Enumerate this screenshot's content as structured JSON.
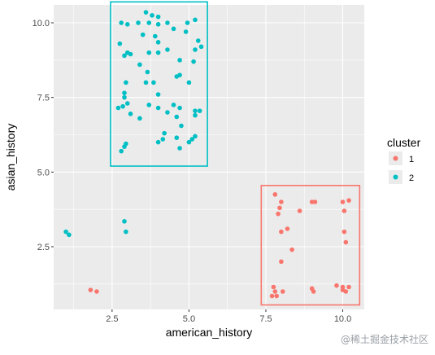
{
  "chart_data": {
    "type": "scatter",
    "xlabel": "american_history",
    "ylabel": "asian_history",
    "xlim": [
      0.6,
      10.7
    ],
    "ylim": [
      0.4,
      10.6
    ],
    "x_ticks": [
      2.5,
      5.0,
      7.5,
      10.0
    ],
    "x_tick_labels": [
      "2.5",
      "5.0",
      "7.5",
      "10.0"
    ],
    "y_ticks": [
      2.5,
      5.0,
      7.5,
      10.0
    ],
    "y_tick_labels": [
      "2.5",
      "5.0",
      "7.5",
      "10.0"
    ],
    "grid": true,
    "legend": {
      "title": "cluster",
      "position": "right",
      "entries": [
        {
          "label": "1",
          "color": "#F8766D"
        },
        {
          "label": "2",
          "color": "#00BFC4"
        }
      ]
    },
    "series": [
      {
        "name": "1",
        "color": "#F8766D",
        "points": [
          [
            7.8,
            4.25
          ],
          [
            7.95,
            3.8
          ],
          [
            8.0,
            4.0
          ],
          [
            8.2,
            3.1
          ],
          [
            8.0,
            3.0
          ],
          [
            7.9,
            3.6
          ],
          [
            8.6,
            3.7
          ],
          [
            9.0,
            4.0
          ],
          [
            9.1,
            4.0
          ],
          [
            10.0,
            4.0
          ],
          [
            10.2,
            4.05
          ],
          [
            10.05,
            3.7
          ],
          [
            10.05,
            3.0
          ],
          [
            10.1,
            2.65
          ],
          [
            8.35,
            2.4
          ],
          [
            8.0,
            2.0
          ],
          [
            7.75,
            1.15
          ],
          [
            7.8,
            1.0
          ],
          [
            7.7,
            0.85
          ],
          [
            7.85,
            0.85
          ],
          [
            8.05,
            1.0
          ],
          [
            9.0,
            1.1
          ],
          [
            9.05,
            1.0
          ],
          [
            9.8,
            1.2
          ],
          [
            10.0,
            1.05
          ],
          [
            10.0,
            1.15
          ],
          [
            10.2,
            1.15
          ],
          [
            10.1,
            1.0
          ],
          [
            1.8,
            1.05
          ],
          [
            2.0,
            1.0
          ]
        ]
      },
      {
        "name": "2",
        "color": "#00BFC4",
        "points": [
          [
            3.6,
            10.35
          ],
          [
            3.8,
            10.25
          ],
          [
            4.0,
            10.2
          ],
          [
            3.35,
            10.0
          ],
          [
            3.7,
            10.0
          ],
          [
            4.0,
            9.95
          ],
          [
            4.3,
            10.0
          ],
          [
            3.0,
            9.95
          ],
          [
            2.8,
            10.0
          ],
          [
            4.95,
            10.0
          ],
          [
            5.2,
            10.1
          ],
          [
            4.9,
            9.7
          ],
          [
            4.5,
            9.8
          ],
          [
            3.5,
            9.6
          ],
          [
            3.9,
            9.55
          ],
          [
            4.0,
            9.35
          ],
          [
            5.3,
            9.4
          ],
          [
            2.75,
            9.3
          ],
          [
            3.0,
            9.0
          ],
          [
            3.1,
            8.95
          ],
          [
            2.9,
            8.9
          ],
          [
            3.7,
            9.0
          ],
          [
            4.0,
            9.0
          ],
          [
            4.3,
            9.1
          ],
          [
            5.2,
            9.1
          ],
          [
            5.4,
            9.2
          ],
          [
            3.4,
            8.6
          ],
          [
            4.7,
            8.75
          ],
          [
            5.15,
            8.7
          ],
          [
            3.65,
            8.35
          ],
          [
            3.6,
            8.0
          ],
          [
            3.85,
            8.0
          ],
          [
            4.6,
            8.2
          ],
          [
            4.7,
            8.25
          ],
          [
            5.0,
            8.0
          ],
          [
            2.95,
            8.0
          ],
          [
            2.9,
            7.65
          ],
          [
            2.9,
            7.5
          ],
          [
            4.0,
            7.6
          ],
          [
            3.0,
            7.3
          ],
          [
            2.7,
            7.15
          ],
          [
            2.85,
            7.2
          ],
          [
            3.7,
            7.25
          ],
          [
            4.0,
            7.15
          ],
          [
            4.5,
            7.25
          ],
          [
            4.7,
            7.15
          ],
          [
            5.2,
            7.05
          ],
          [
            5.35,
            7.05
          ],
          [
            3.1,
            6.95
          ],
          [
            4.3,
            7.0
          ],
          [
            3.4,
            6.8
          ],
          [
            4.6,
            6.85
          ],
          [
            4.75,
            6.55
          ],
          [
            5.2,
            6.9
          ],
          [
            4.2,
            6.3
          ],
          [
            4.6,
            6.15
          ],
          [
            4.0,
            6.0
          ],
          [
            4.15,
            6.1
          ],
          [
            5.0,
            6.0
          ],
          [
            5.1,
            6.1
          ],
          [
            5.2,
            6.2
          ],
          [
            4.7,
            5.8
          ],
          [
            2.9,
            5.85
          ],
          [
            2.95,
            5.95
          ],
          [
            2.8,
            5.7
          ],
          [
            2.9,
            3.35
          ],
          [
            2.95,
            3.0
          ],
          [
            1.0,
            3.0
          ],
          [
            1.1,
            2.9
          ]
        ]
      }
    ],
    "annotations": [
      {
        "type": "rectangle",
        "color": "#00BFC4",
        "xmin": 2.45,
        "xmax": 5.6,
        "ymin": 5.2,
        "ymax": 10.7
      },
      {
        "type": "rectangle",
        "color": "#F8766D",
        "xmin": 7.35,
        "xmax": 10.55,
        "ymin": 0.55,
        "ymax": 4.55
      }
    ]
  },
  "watermark": "@稀土掘金技术社区"
}
